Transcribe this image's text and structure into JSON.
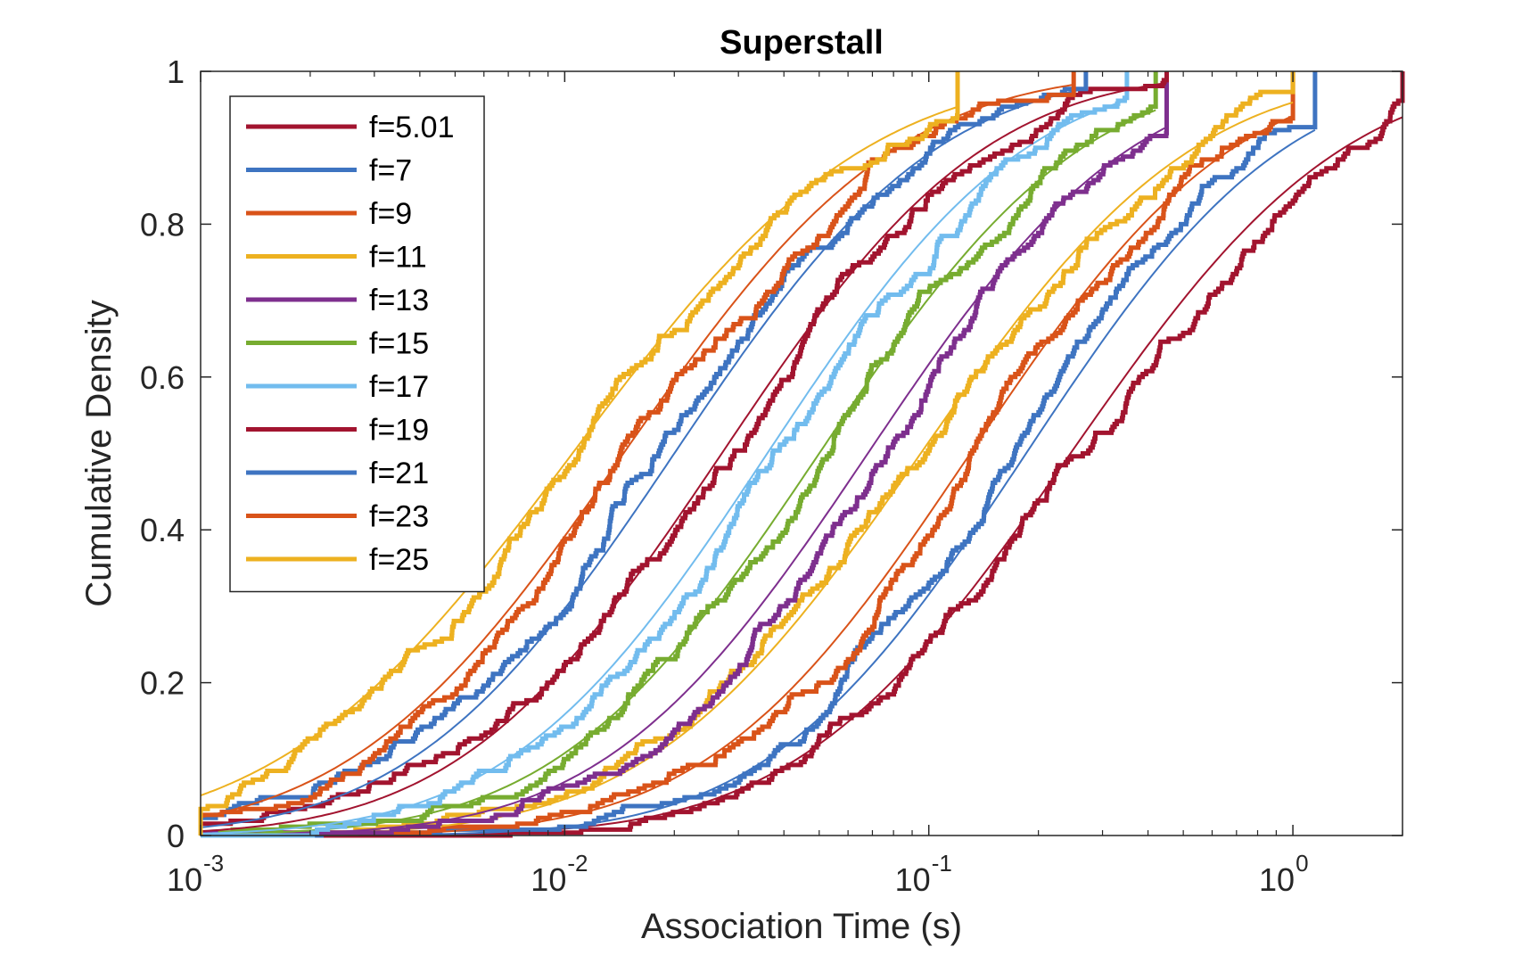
{
  "chart_data": {
    "type": "line",
    "title": "Superstall",
    "xlabel": "Association Time (s)",
    "ylabel": "Cumulative Density",
    "xscale": "log",
    "xlim": [
      0.001,
      2
    ],
    "ylim": [
      0,
      1
    ],
    "xticks": [
      {
        "value": 0.001,
        "base": "10",
        "exp": "-3"
      },
      {
        "value": 0.01,
        "base": "10",
        "exp": "-2"
      },
      {
        "value": 0.1,
        "base": "10",
        "exp": "-1"
      },
      {
        "value": 1,
        "base": "10",
        "exp": "0"
      }
    ],
    "yticks": [
      {
        "value": 0,
        "label": "0"
      },
      {
        "value": 0.2,
        "label": "0.2"
      },
      {
        "value": 0.4,
        "label": "0.4"
      },
      {
        "value": 0.6,
        "label": "0.6"
      },
      {
        "value": 0.8,
        "label": "0.8"
      },
      {
        "value": 1,
        "label": "1"
      }
    ],
    "grid": false,
    "legend_position": "top-left",
    "series": [
      {
        "name": "f=5.01",
        "color": "#A2142F",
        "median": 0.245,
        "sigma": 1.35,
        "min_x": 0.001,
        "max_x": 2.0
      },
      {
        "name": "f=7",
        "color": "#3E74C1",
        "median": 0.185,
        "sigma": 1.28,
        "min_x": 0.001,
        "max_x": 1.15
      },
      {
        "name": "f=9",
        "color": "#D95319",
        "median": 0.13,
        "sigma": 1.3,
        "min_x": 0.001,
        "max_x": 1.0
      },
      {
        "name": "f=11",
        "color": "#EDB120",
        "median": 0.095,
        "sigma": 1.35,
        "min_x": 0.001,
        "max_x": 1.0
      },
      {
        "name": "f=13",
        "color": "#7E2F8E",
        "median": 0.068,
        "sigma": 1.3,
        "min_x": 0.001,
        "max_x": 0.45
      },
      {
        "name": "f=15",
        "color": "#77AC30",
        "median": 0.05,
        "sigma": 1.3,
        "min_x": 0.001,
        "max_x": 0.42
      },
      {
        "name": "f=17",
        "color": "#72BCEE",
        "median": 0.036,
        "sigma": 1.28,
        "min_x": 0.001,
        "max_x": 0.35
      },
      {
        "name": "f=19",
        "color": "#A2142F",
        "median": 0.027,
        "sigma": 1.3,
        "min_x": 0.001,
        "max_x": 0.45
      },
      {
        "name": "f=21",
        "color": "#3E74C1",
        "median": 0.02,
        "sigma": 1.3,
        "min_x": 0.001,
        "max_x": 0.27
      },
      {
        "name": "f=23",
        "color": "#D95319",
        "median": 0.0145,
        "sigma": 1.35,
        "min_x": 0.001,
        "max_x": 0.25
      },
      {
        "name": "f=25",
        "color": "#EDB120",
        "median": 0.0105,
        "sigma": 1.45,
        "min_x": 0.001,
        "max_x": 0.12
      }
    ]
  }
}
